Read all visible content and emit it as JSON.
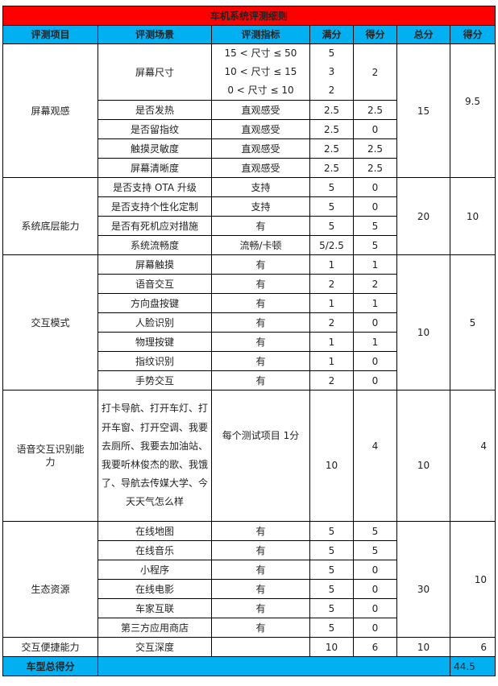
{
  "title": "车机系统评测细则",
  "headers": [
    "评测项目",
    "评测场景",
    "评测指标",
    "满分",
    "得分",
    "总分",
    "得分"
  ],
  "screen": {
    "item": "屏幕观感",
    "size_scene": "屏幕尺寸",
    "size_metrics": [
      "15 < 尺寸 ≤ 50",
      "10 < 尺寸 ≤ 15",
      "0 < 尺寸 ≤ 10"
    ],
    "size_full": [
      "5",
      "3",
      "2"
    ],
    "size_score": "2",
    "rows": [
      [
        "是否发热",
        "直观感受",
        "2.5",
        "2.5"
      ],
      [
        "是否留指纹",
        "直观感受",
        "2.5",
        "0"
      ],
      [
        "触摸灵敏度",
        "直观感受",
        "2.5",
        "2.5"
      ],
      [
        "屏幕清晰度",
        "直观感受",
        "2.5",
        "2.5"
      ]
    ],
    "total": "15",
    "score": "9.5"
  },
  "system": {
    "item": "系统底层能力",
    "rows": [
      [
        "是否支持 OTA 升级",
        "支持",
        "5",
        "0"
      ],
      [
        "是否支持个性化定制",
        "支持",
        "5",
        "0"
      ],
      [
        "是否有死机应对措施",
        "有",
        "5",
        "5"
      ],
      [
        "系统流畅度",
        "流畅/卡顿",
        "5/2.5",
        "5"
      ]
    ],
    "total": "20",
    "score": "10"
  },
  "interaction": {
    "item": "交互模式",
    "rows": [
      [
        "屏幕触摸",
        "有",
        "1",
        "1"
      ],
      [
        "语音交互",
        "有",
        "2",
        "2"
      ],
      [
        "方向盘按键",
        "有",
        "1",
        "1"
      ],
      [
        "人脸识别",
        "有",
        "2",
        "0"
      ],
      [
        "物理按键",
        "有",
        "1",
        "1"
      ],
      [
        "指纹识别",
        "有",
        "1",
        "0"
      ],
      [
        "手势交互",
        "有",
        "2",
        "0"
      ]
    ],
    "total": "10",
    "score": "5"
  },
  "voice": {
    "item": "语音交互识别能力",
    "scene": "打卡导航、打开车灯、打开车窗、打开空调、我要去厕所、我要去加油站、我要听林俊杰的歌、我饿了、导航去传媒大学、今天天气怎么样",
    "metric": "每个测试项目 1分",
    "full": "10",
    "got": "4",
    "total": "10",
    "score": "4"
  },
  "ecosystem": {
    "item": "生态资源",
    "rows": [
      [
        "在线地图",
        "有",
        "5",
        "5"
      ],
      [
        "在线音乐",
        "有",
        "5",
        "5"
      ],
      [
        "小程序",
        "有",
        "5",
        "0"
      ],
      [
        "在线电影",
        "有",
        "5",
        "0"
      ],
      [
        "车家互联",
        "有",
        "5",
        "0"
      ],
      [
        "第三方应用商店",
        "有",
        "5",
        "0"
      ]
    ],
    "total": "30",
    "score": "10"
  },
  "convenience": {
    "item": "交互便捷能力",
    "scene": "交互深度",
    "metric": "",
    "full": "10",
    "got": "6",
    "total": "10",
    "score": "6"
  },
  "grand_total": {
    "label": "车型总得分",
    "value": "44.5"
  },
  "colors": {
    "title_bg": "#ff0000",
    "header_bg": "#00b0f0"
  }
}
